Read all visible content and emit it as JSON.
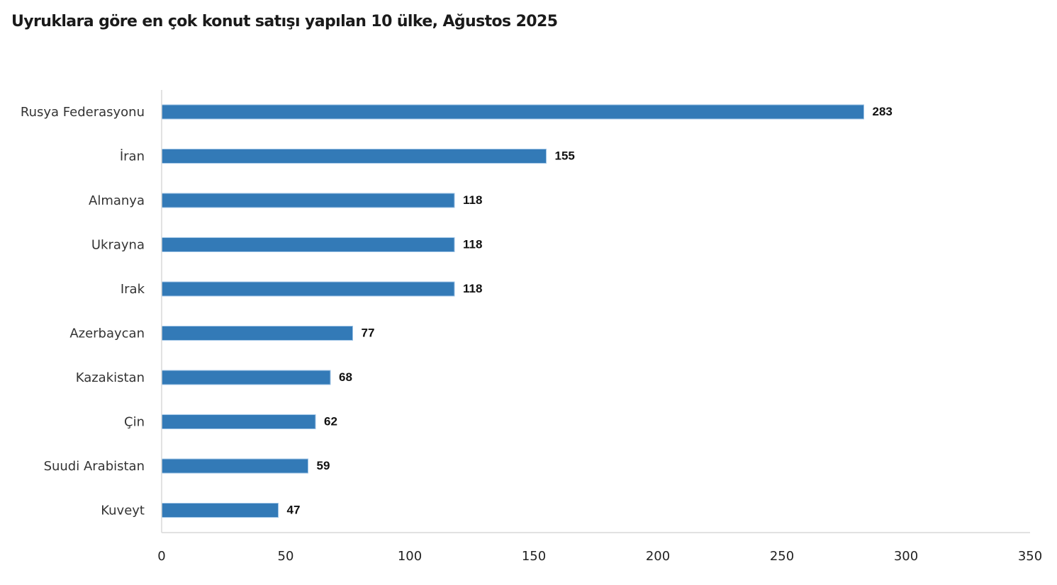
{
  "chart_data": {
    "type": "bar",
    "orientation": "horizontal",
    "title": "Uyruklara göre en çok konut satışı yapılan 10 ülke, Ağustos 2025",
    "xlabel": "",
    "ylabel": "",
    "categories": [
      "Rusya Federasyonu",
      "İran",
      "Almanya",
      "Ukrayna",
      "Irak",
      "Azerbaycan",
      "Kazakistan",
      "Çin",
      "Suudi Arabistan",
      "Kuveyt"
    ],
    "values": [
      283,
      155,
      118,
      118,
      118,
      77,
      68,
      62,
      59,
      47
    ],
    "xlim": [
      0,
      350
    ],
    "xticks": [
      0,
      50,
      100,
      150,
      200,
      250,
      300,
      350
    ],
    "grid": false,
    "legend": "none",
    "bar_color": "#337ab7",
    "data_labels": true
  }
}
